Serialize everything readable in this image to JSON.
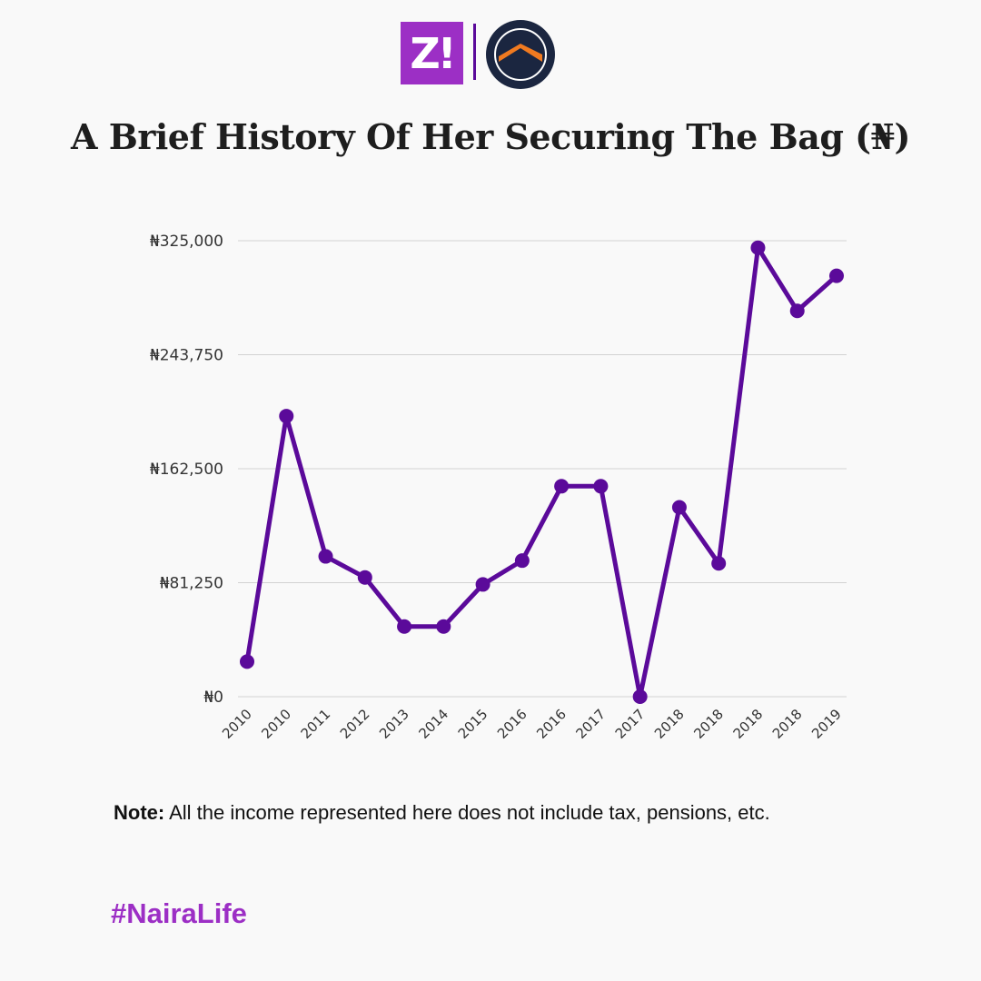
{
  "header": {
    "logo_left_text": "Z!",
    "title": "A Brief History Of Her Securing The Bag (₦)"
  },
  "chart_data": {
    "type": "line",
    "title": "A Brief History Of Her Securing The Bag (₦)",
    "xlabel": "",
    "ylabel": "",
    "categories": [
      "2010",
      "2010",
      "2011",
      "2012",
      "2013",
      "2014",
      "2015",
      "2016",
      "2016",
      "2017",
      "2017",
      "2018",
      "2018",
      "2018",
      "2018",
      "2019"
    ],
    "values": [
      25000,
      200000,
      100000,
      85000,
      50000,
      50000,
      80000,
      97000,
      150000,
      150000,
      0,
      135000,
      95000,
      320000,
      275000,
      300000
    ],
    "ylim": [
      0,
      325000
    ],
    "yticks": [
      0,
      81250,
      162500,
      243750,
      325000
    ],
    "ytick_labels": [
      "₦0",
      "₦81,250",
      "₦162,500",
      "₦243,750",
      "₦325,000"
    ],
    "grid": true,
    "line_color": "#5b0a9a"
  },
  "note": {
    "label": "Note:",
    "text": " All the income represented here does not include tax, pensions, etc."
  },
  "hashtag": "#NairaLife"
}
